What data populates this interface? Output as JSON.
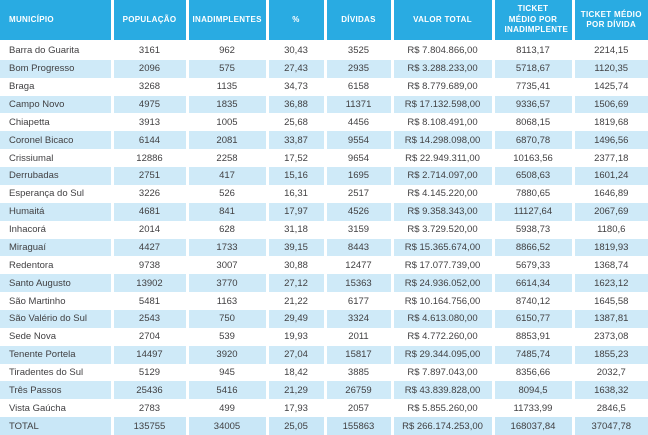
{
  "colors": {
    "header_bg": "#29abe2",
    "header_text": "#ffffff",
    "stripe_bg": "#cfeaf8",
    "total_bg": "#c9e7f7",
    "body_text": "#414042"
  },
  "chart_data": {
    "type": "table",
    "columns": [
      {
        "key": "municipio",
        "label": "MUNICÍPIO",
        "align": "left"
      },
      {
        "key": "populacao",
        "label": "POPULAÇÃO",
        "align": "center"
      },
      {
        "key": "inadimplentes",
        "label": "INADIMPLENTES",
        "align": "center"
      },
      {
        "key": "percentual",
        "label": "%",
        "align": "center"
      },
      {
        "key": "dividas",
        "label": "DÍVIDAS",
        "align": "center"
      },
      {
        "key": "valor-total",
        "label": "VALOR TOTAL",
        "align": "center"
      },
      {
        "key": "ticket-medio-por-inadimplente",
        "label": "TICKET MÉDIO POR INADIMPLENTE",
        "align": "center"
      },
      {
        "key": "ticket-medio-por-divida",
        "label": "TICKET MÉDIO POR DÍVIDA",
        "align": "center"
      }
    ],
    "rows": [
      [
        "Barra do Guarita",
        "3161",
        "962",
        "30,43",
        "3525",
        "R$ 7.804.866,00",
        "8113,17",
        "2214,15"
      ],
      [
        "Bom Progresso",
        "2096",
        "575",
        "27,43",
        "2935",
        "R$ 3.288.233,00",
        "5718,67",
        "1120,35"
      ],
      [
        "Braga",
        "3268",
        "1135",
        "34,73",
        "6158",
        "R$ 8.779.689,00",
        "7735,41",
        "1425,74"
      ],
      [
        "Campo Novo",
        "4975",
        "1835",
        "36,88",
        "11371",
        "R$ 17.132.598,00",
        "9336,57",
        "1506,69"
      ],
      [
        "Chiapetta",
        "3913",
        "1005",
        "25,68",
        "4456",
        "R$ 8.108.491,00",
        "8068,15",
        "1819,68"
      ],
      [
        "Coronel Bicaco",
        "6144",
        "2081",
        "33,87",
        "9554",
        "R$ 14.298.098,00",
        "6870,78",
        "1496,56"
      ],
      [
        "Crissiumal",
        "12886",
        "2258",
        "17,52",
        "9654",
        "R$ 22.949.311,00",
        "10163,56",
        "2377,18"
      ],
      [
        "Derrubadas",
        "2751",
        "417",
        "15,16",
        "1695",
        "R$ 2.714.097,00",
        "6508,63",
        "1601,24"
      ],
      [
        "Esperança do Sul",
        "3226",
        "526",
        "16,31",
        "2517",
        "R$ 4.145.220,00",
        "7880,65",
        "1646,89"
      ],
      [
        "Humaitá",
        "4681",
        "841",
        "17,97",
        "4526",
        "R$ 9.358.343,00",
        "11127,64",
        "2067,69"
      ],
      [
        "Inhacorá",
        "2014",
        "628",
        "31,18",
        "3159",
        "R$ 3.729.520,00",
        "5938,73",
        "1180,6"
      ],
      [
        "Miraguaí",
        "4427",
        "1733",
        "39,15",
        "8443",
        "R$ 15.365.674,00",
        "8866,52",
        "1819,93"
      ],
      [
        "Redentora",
        "9738",
        "3007",
        "30,88",
        "12477",
        "R$ 17.077.739,00",
        "5679,33",
        "1368,74"
      ],
      [
        "Santo Augusto",
        "13902",
        "3770",
        "27,12",
        "15363",
        "R$ 24.936.052,00",
        "6614,34",
        "1623,12"
      ],
      [
        "São Martinho",
        "5481",
        "1163",
        "21,22",
        "6177",
        "R$ 10.164.756,00",
        "8740,12",
        "1645,58"
      ],
      [
        "São Valério do Sul",
        "2543",
        "750",
        "29,49",
        "3324",
        "R$ 4.613.080,00",
        "6150,77",
        "1387,81"
      ],
      [
        "Sede Nova",
        "2704",
        "539",
        "19,93",
        "2011",
        "R$ 4.772.260,00",
        "8853,91",
        "2373,08"
      ],
      [
        "Tenente Portela",
        "14497",
        "3920",
        "27,04",
        "15817",
        "R$ 29.344.095,00",
        "7485,74",
        "1855,23"
      ],
      [
        "Tiradentes do Sul",
        "5129",
        "945",
        "18,42",
        "3885",
        "R$ 7.897.043,00",
        "8356,66",
        "2032,7"
      ],
      [
        "Três Passos",
        "25436",
        "5416",
        "21,29",
        "26759",
        "R$ 43.839.828,00",
        "8094,5",
        "1638,32"
      ],
      [
        "Vista Gaúcha",
        "2783",
        "499",
        "17,93",
        "2057",
        "R$ 5.855.260,00",
        "11733,99",
        "2846,5"
      ]
    ],
    "total_row": [
      "TOTAL",
      "135755",
      "34005",
      "25,05",
      "155863",
      "R$ 266.174.253,00",
      "168037,84",
      "37047,78"
    ],
    "layout_hints": {
      "striped": "even rows light blue",
      "header_position": "top"
    }
  }
}
